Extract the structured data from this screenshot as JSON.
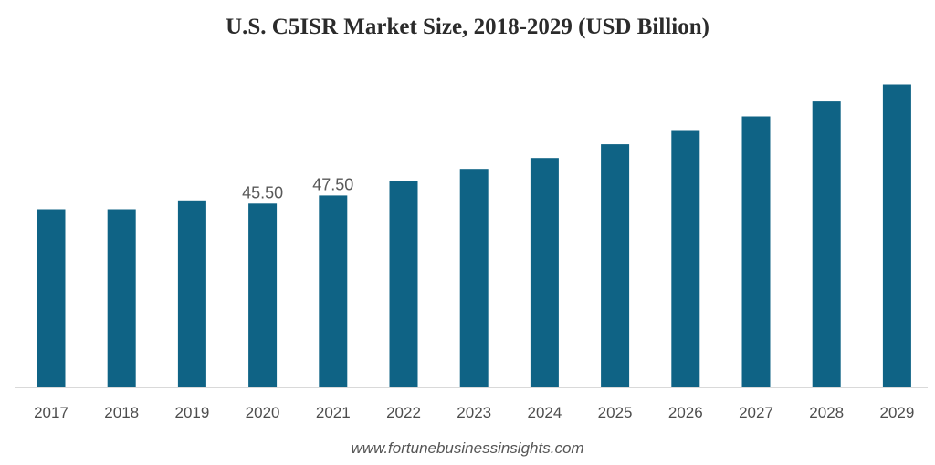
{
  "chart_data": {
    "type": "bar",
    "title": "U.S. C5ISR Market Size, 2018-2029 (USD Billion)",
    "xlabel": "",
    "ylabel": "",
    "categories": [
      "2017",
      "2018",
      "2019",
      "2020",
      "2021",
      "2022",
      "2023",
      "2024",
      "2025",
      "2026",
      "2027",
      "2028",
      "2029"
    ],
    "values": [
      44.1,
      44.1,
      46.3,
      45.5,
      47.5,
      51.1,
      54.1,
      56.8,
      60.2,
      63.5,
      67.1,
      70.8,
      75.0
    ],
    "data_labels": [
      {
        "category": "2020",
        "text": "45.50"
      },
      {
        "category": "2021",
        "text": "47.50"
      }
    ],
    "ylim": [
      0,
      80
    ],
    "grid": false,
    "legend": "none",
    "bar_color": "#0f6385"
  },
  "source": {
    "watermark": "www.fortunebusinessinsights.com"
  }
}
